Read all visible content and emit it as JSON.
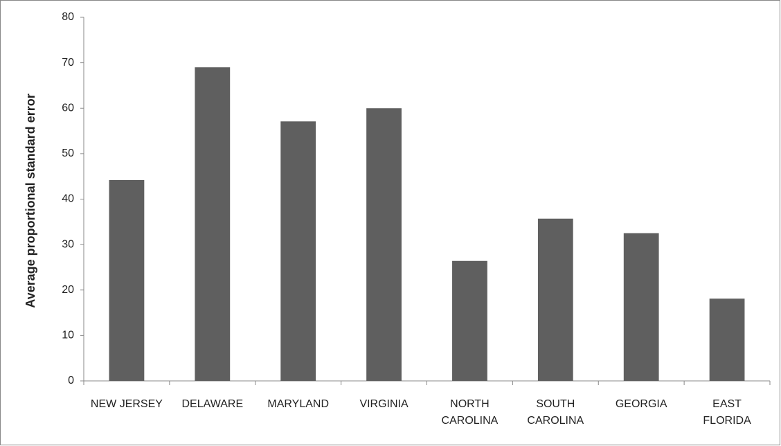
{
  "chart_data": {
    "type": "bar",
    "y_label": "Average proportional standard error",
    "categories": [
      "NEW JERSEY",
      "DELAWARE",
      "MARYLAND",
      "VIRGINIA",
      "NORTH\nCAROLINA",
      "SOUTH\nCAROLINA",
      "GEORGIA",
      "EAST\nFLORIDA"
    ],
    "values": [
      44.2,
      69.0,
      57.1,
      60.0,
      26.4,
      35.7,
      32.5,
      18.1
    ],
    "color": "#5f5f5f",
    "ylim": [
      0,
      80
    ],
    "yticks": [
      0,
      10,
      20,
      30,
      40,
      50,
      60,
      70,
      80
    ],
    "grid": false
  }
}
